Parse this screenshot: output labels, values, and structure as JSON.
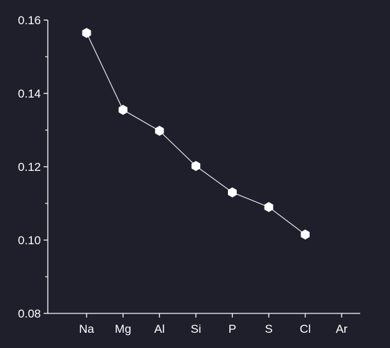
{
  "colors": {
    "background": "#1f1e2b",
    "axis": "#ffffff",
    "line": "#e6e6ee",
    "marker_fill": "#ffffff",
    "text": "#ffffff"
  },
  "chart_data": {
    "type": "line",
    "title": "",
    "xlabel": "",
    "ylabel": "",
    "categories": [
      "Na",
      "Mg",
      "Al",
      "Si",
      "P",
      "S",
      "Cl",
      "Ar"
    ],
    "series": [
      {
        "marker": "hexagon",
        "values": [
          0.1565,
          0.1355,
          0.1298,
          0.1202,
          0.113,
          0.109,
          0.1015,
          null
        ]
      }
    ],
    "ylim": [
      0.08,
      0.16
    ],
    "y_major_ticks": [
      0.08,
      0.1,
      0.12,
      0.14,
      0.16
    ],
    "y_tick_labels": [
      "0.08",
      "0.10",
      "0.12",
      "0.14",
      "0.16"
    ],
    "y_minor_ticks": [
      0.09,
      0.11,
      0.13,
      0.15
    ],
    "grid": false,
    "legend": "none"
  }
}
